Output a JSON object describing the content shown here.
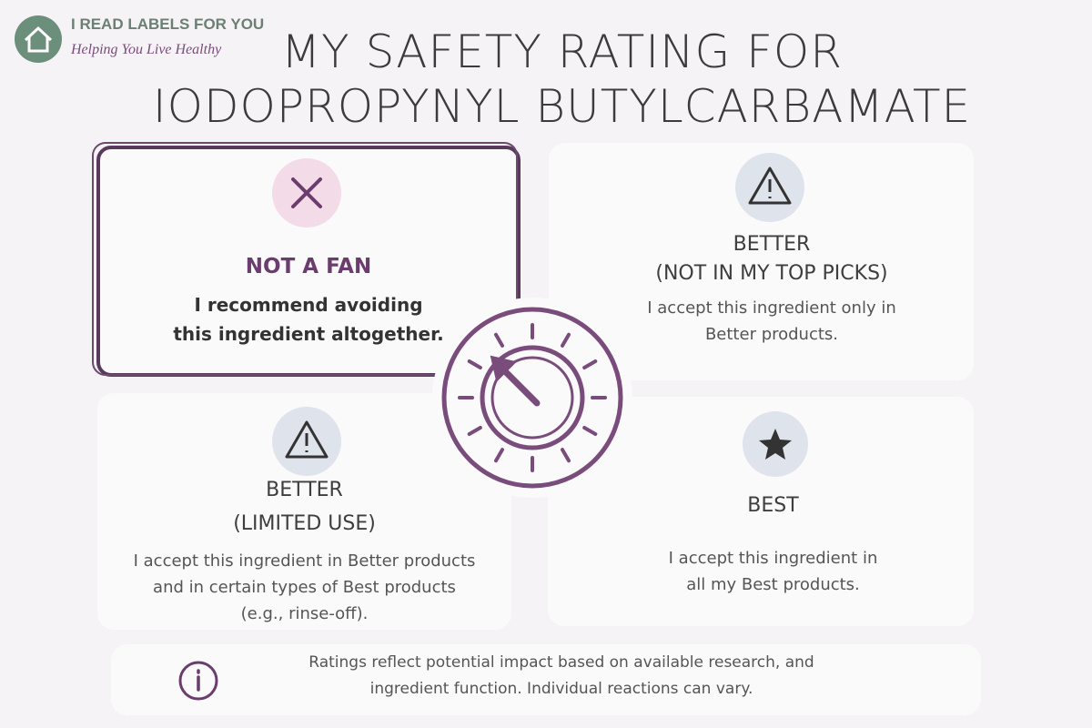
{
  "logo": {
    "name": "I READ LABELS FOR YOU",
    "tagline": "Helping You Live Healthy"
  },
  "title": [
    "MY SAFETY RATING FOR",
    "IODOPROPYNYL BUTYLCARBAMATE"
  ],
  "cards": [
    {
      "heading": [
        "NOT A FAN"
      ],
      "description": [
        "I recommend avoiding",
        "this ingredient altogether."
      ]
    },
    {
      "heading": [
        "BETTER",
        "(NOT IN MY TOP PICKS)"
      ],
      "description": [
        "I accept this ingredient only in",
        "Better products."
      ]
    },
    {
      "heading": [
        "BETTER",
        "(LIMITED USE)"
      ],
      "description": [
        "I accept this ingredient in Better products",
        "and in certain types of Best products",
        "(e.g., rinse-off)."
      ]
    },
    {
      "heading": [
        "BEST"
      ],
      "description": [
        "I accept this ingredient in",
        "all my Best products."
      ]
    }
  ],
  "footer": [
    "Ratings reflect potential impact based on available research, and",
    "ingredient function. Individual reactions can vary."
  ]
}
